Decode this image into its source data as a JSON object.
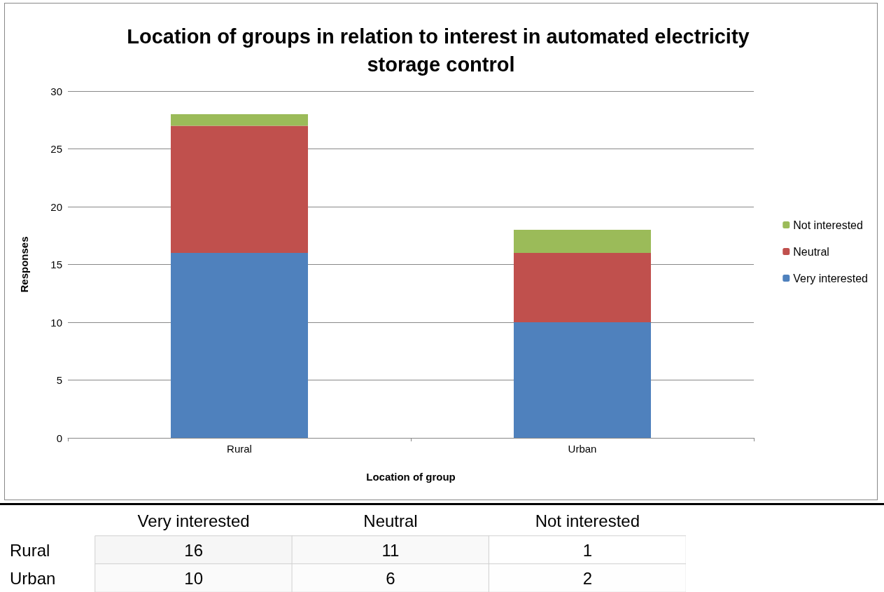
{
  "chart_data": [
    {
      "type": "bar",
      "title": "Location of groups in relation to interest in automated electricity storage control",
      "xlabel": "Location of group",
      "ylabel": "Responses",
      "categories": [
        "Rural",
        "Urban"
      ],
      "series": [
        {
          "name": "Very interested",
          "color": "#4f81bd",
          "values": [
            16,
            10
          ]
        },
        {
          "name": "Neutral",
          "color": "#c0504d",
          "values": [
            11,
            6
          ]
        },
        {
          "name": "Not interested",
          "color": "#9bbb59",
          "values": [
            1,
            2
          ]
        }
      ],
      "stacked": true,
      "ylim": [
        0,
        30
      ],
      "yticks": [
        0,
        5,
        10,
        15,
        20,
        25,
        30
      ],
      "grid": "y",
      "legend": "right"
    },
    {
      "type": "heatmap",
      "categories": [
        "Very interested",
        "Neutral",
        "Not interested"
      ],
      "y_categories": [
        "Rural",
        "Urban"
      ],
      "cells": [
        [
          16,
          11,
          1
        ],
        [
          10,
          6,
          2
        ]
      ],
      "cell_labels": [
        [
          "16",
          "11",
          "1"
        ],
        [
          "10",
          "6",
          "2"
        ]
      ]
    }
  ]
}
